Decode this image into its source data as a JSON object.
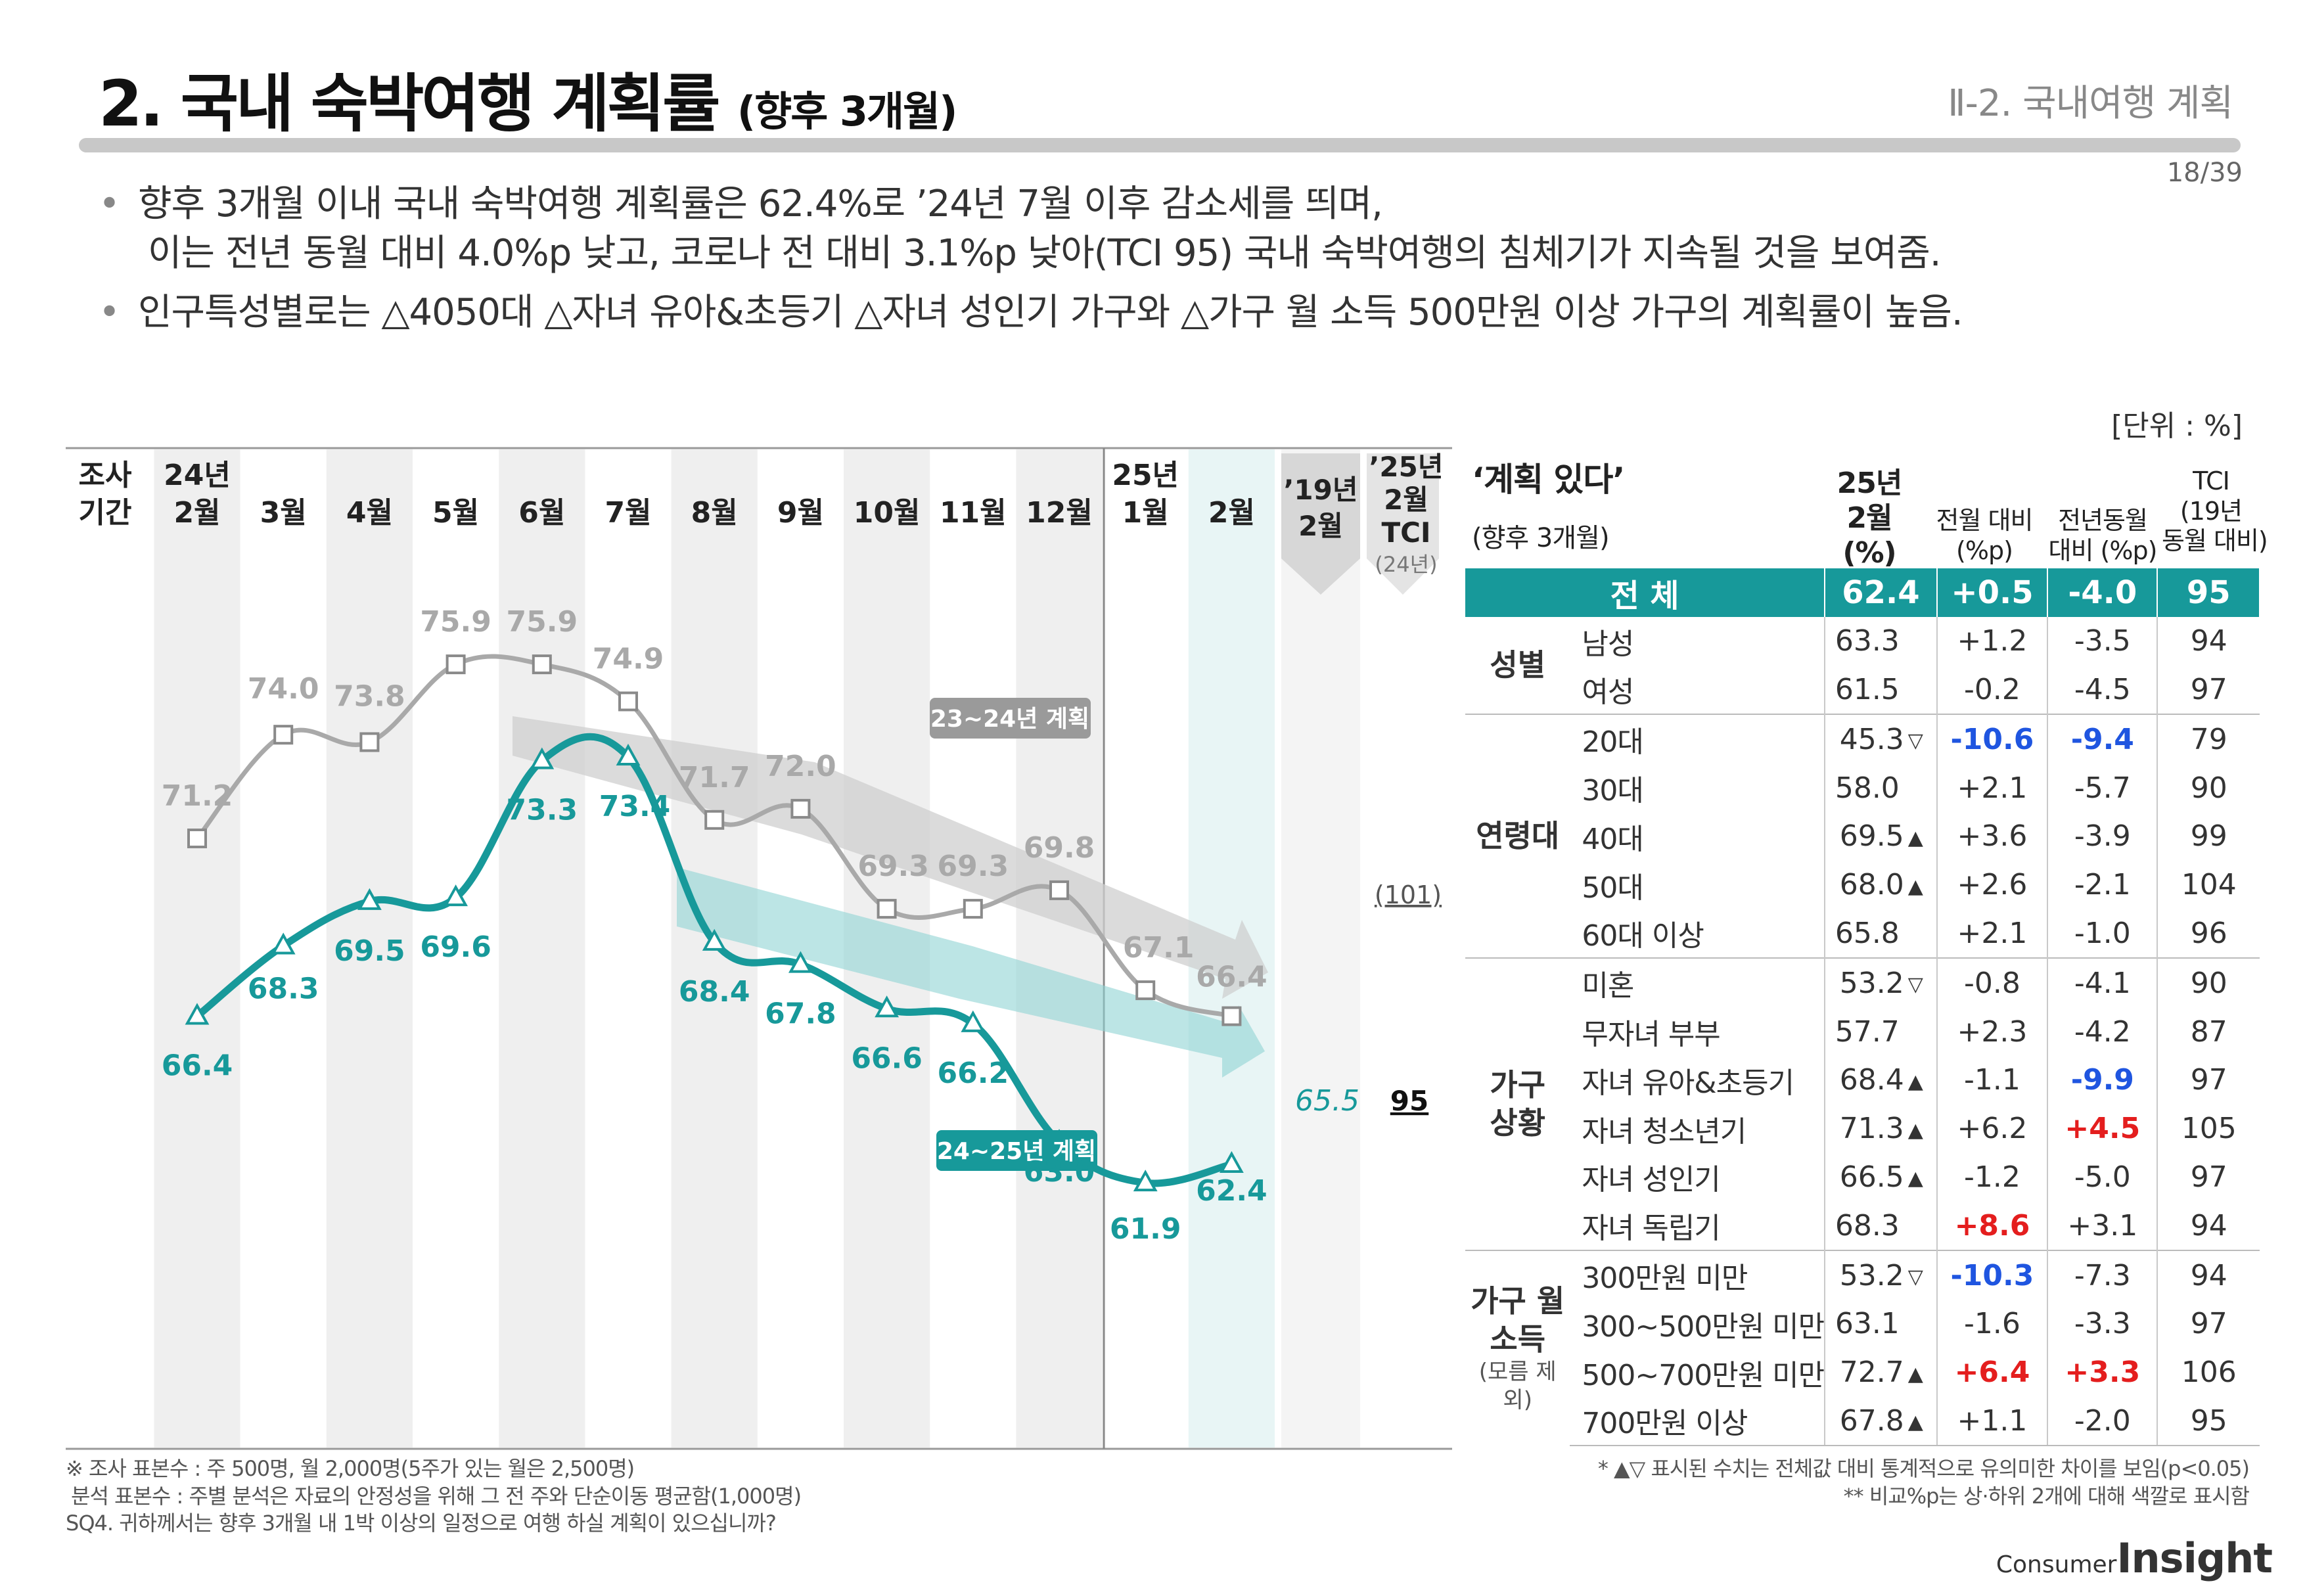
{
  "header": {
    "title": "2. 국내 숙박여행 계획률",
    "title_sub": "(향후 3개월)",
    "section": "Ⅱ-2. 국내여행 계획",
    "page": "18/39"
  },
  "bullets": {
    "b1_line1": "향후 3개월 이내 국내 숙박여행 계획률은 62.4%로 ’24년 7월 이후 감소세를 띄며,",
    "b1_line2": "이는 전년 동월 대비 4.0%p 낮고, 코로나 전 대비 3.1%p 낮아(TCI 95) 국내 숙박여행의 침체기가 지속될 것을 보여줌.",
    "b2": "인구특성별로는 △4050대 △자녀 유아&초등기 △자녀 성인기 가구와 △가구 월 소득 500만원 이상 가구의 계획률이 높음."
  },
  "unit": "[단위 : %]",
  "chart_data": {
    "type": "line",
    "title": "국내 숙박여행 계획률 (향후 3개월)",
    "period_label": "조사 기간",
    "categories": [
      "24년 2월",
      "3월",
      "4월",
      "5월",
      "6월",
      "7월",
      "8월",
      "9월",
      "10월",
      "11월",
      "12월",
      "25년 1월",
      "2월"
    ],
    "series": [
      {
        "name": "23~24년 계획",
        "color": "#a9a9a9",
        "values": [
          71.2,
          74.0,
          73.8,
          75.9,
          75.9,
          74.9,
          71.7,
          72.0,
          69.3,
          69.3,
          69.8,
          67.1,
          66.4
        ]
      },
      {
        "name": "24~25년 계획",
        "color": "#17999a",
        "values": [
          66.4,
          68.3,
          69.5,
          69.6,
          73.3,
          73.4,
          68.4,
          67.8,
          66.6,
          66.2,
          63.0,
          61.9,
          62.4
        ]
      }
    ],
    "extra_columns": {
      "col19_label": "’19년 2월",
      "col19_prev": "(101)",
      "col19_value": "65.5",
      "tci_label": "’25년 2월 TCI",
      "tci_note": "(24년)",
      "tci_value": "95"
    },
    "ylim": [
      58,
      80
    ]
  },
  "table": {
    "header": {
      "plan": "‘계획 있다’",
      "plan_sub": "(향후 3개월)",
      "col_pct": "25년 2월 (%)",
      "col_mom": "전월 대비 (%p)",
      "col_yoy": "전년동월 대비 (%p)",
      "col_tci": "TCI (19년 동월 대비)"
    },
    "total": {
      "label": "전 체",
      "pct": "62.4",
      "mom": "+0.5",
      "yoy": "-4.0",
      "tci": "95"
    },
    "groups": [
      {
        "name": "성별",
        "rows": [
          {
            "label": "남성",
            "pct": "63.3",
            "mark": "",
            "mom": "+1.2",
            "mom_c": "",
            "yoy": "-3.5",
            "yoy_c": "",
            "tci": "94"
          },
          {
            "label": "여성",
            "pct": "61.5",
            "mark": "",
            "mom": "-0.2",
            "mom_c": "",
            "yoy": "-4.5",
            "yoy_c": "",
            "tci": "97"
          }
        ]
      },
      {
        "name": "연령대",
        "rows": [
          {
            "label": "20대",
            "pct": "45.3",
            "mark": "▽",
            "mom": "-10.6",
            "mom_c": "blue",
            "yoy": "-9.4",
            "yoy_c": "blue",
            "tci": "79"
          },
          {
            "label": "30대",
            "pct": "58.0",
            "mark": "",
            "mom": "+2.1",
            "mom_c": "",
            "yoy": "-5.7",
            "yoy_c": "",
            "tci": "90"
          },
          {
            "label": "40대",
            "pct": "69.5",
            "mark": "▲",
            "mom": "+3.6",
            "mom_c": "",
            "yoy": "-3.9",
            "yoy_c": "",
            "tci": "99"
          },
          {
            "label": "50대",
            "pct": "68.0",
            "mark": "▲",
            "mom": "+2.6",
            "mom_c": "",
            "yoy": "-2.1",
            "yoy_c": "",
            "tci": "104"
          },
          {
            "label": "60대 이상",
            "pct": "65.8",
            "mark": "",
            "mom": "+2.1",
            "mom_c": "",
            "yoy": "-1.0",
            "yoy_c": "",
            "tci": "96"
          }
        ]
      },
      {
        "name": "가구 상황",
        "rows": [
          {
            "label": "미혼",
            "pct": "53.2",
            "mark": "▽",
            "mom": "-0.8",
            "mom_c": "",
            "yoy": "-4.1",
            "yoy_c": "",
            "tci": "90"
          },
          {
            "label": "무자녀 부부",
            "pct": "57.7",
            "mark": "",
            "mom": "+2.3",
            "mom_c": "",
            "yoy": "-4.2",
            "yoy_c": "",
            "tci": "87"
          },
          {
            "label": "자녀 유아&초등기",
            "pct": "68.4",
            "mark": "▲",
            "mom": "-1.1",
            "mom_c": "",
            "yoy": "-9.9",
            "yoy_c": "blue",
            "tci": "97"
          },
          {
            "label": "자녀 청소년기",
            "pct": "71.3",
            "mark": "▲",
            "mom": "+6.2",
            "mom_c": "",
            "yoy": "+4.5",
            "yoy_c": "red",
            "tci": "105"
          },
          {
            "label": "자녀 성인기",
            "pct": "66.5",
            "mark": "▲",
            "mom": "-1.2",
            "mom_c": "",
            "yoy": "-5.0",
            "yoy_c": "",
            "tci": "97"
          },
          {
            "label": "자녀 독립기",
            "pct": "68.3",
            "mark": "",
            "mom": "+8.6",
            "mom_c": "red",
            "yoy": "+3.1",
            "yoy_c": "",
            "tci": "94"
          }
        ]
      },
      {
        "name": "가구 월 소득",
        "note": "(모름 제외)",
        "rows": [
          {
            "label": "300만원 미만",
            "pct": "53.2",
            "mark": "▽",
            "mom": "-10.3",
            "mom_c": "blue",
            "yoy": "-7.3",
            "yoy_c": "",
            "tci": "94"
          },
          {
            "label": "300~500만원 미만",
            "pct": "63.1",
            "mark": "",
            "mom": "-1.6",
            "mom_c": "",
            "yoy": "-3.3",
            "yoy_c": "",
            "tci": "97"
          },
          {
            "label": "500~700만원 미만",
            "pct": "72.7",
            "mark": "▲",
            "mom": "+6.4",
            "mom_c": "red",
            "yoy": "+3.3",
            "yoy_c": "red",
            "tci": "106"
          },
          {
            "label": "700만원 이상",
            "pct": "67.8",
            "mark": "▲",
            "mom": "+1.1",
            "mom_c": "",
            "yoy": "-2.0",
            "yoy_c": "",
            "tci": "95"
          }
        ]
      }
    ]
  },
  "footnotes": {
    "left1": "※ 조사 표본수 : 주 500명, 월 2,000명(5주가 있는 월은 2,500명)",
    "left2": "분석 표본수 : 주별 분석은 자료의 안정성을 위해 그 전 주와 단순이동 평균함(1,000명)",
    "left3": "SQ4. 귀하께서는 향후 3개월 내 1박 이상의 일정으로 여행 하실 계획이 있으십니까?",
    "right1": "* ▲▽ 표시된 수치는 전체값 대비 통계적으로 유의미한 차이를 보임(p<0.05)",
    "right2": "** 비교%p는 상·하위 2개에 대해 색깔로 표시함"
  },
  "brand": {
    "consumer": "Consumer",
    "insight": "Insight"
  }
}
